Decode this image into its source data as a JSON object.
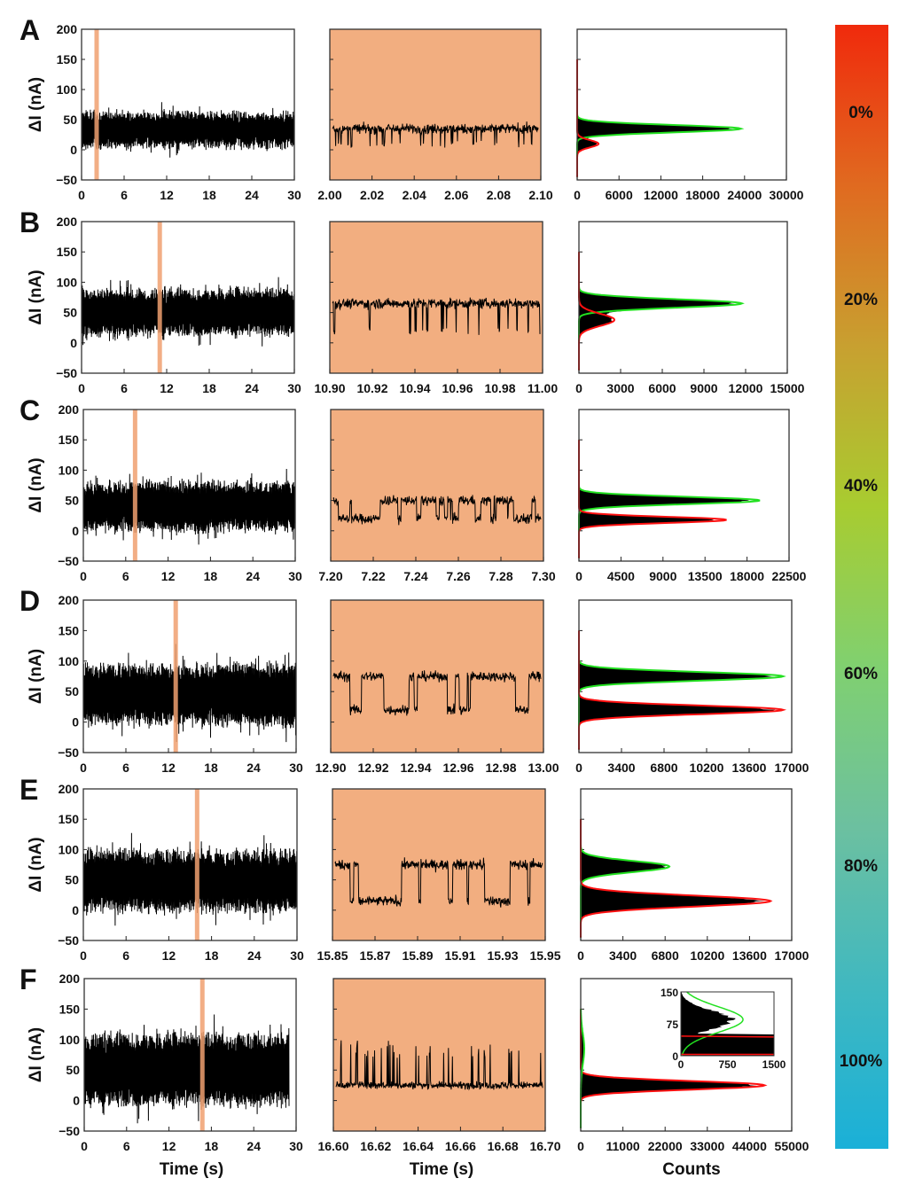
{
  "figure": {
    "ylabel": "ΔI (nA)",
    "xlabel_trace": "Time (s)",
    "xlabel_zoom": "Time (s)",
    "xlabel_hist": "Counts",
    "colorbar": {
      "labels": [
        "0%",
        "20%",
        "40%",
        "60%",
        "80%",
        "100%"
      ],
      "colors": [
        "#f02a0c",
        "#e06a20",
        "#c8a030",
        "#a8cc30",
        "#80d070",
        "#6cc0a0",
        "#40b8c0",
        "#1ab0d8"
      ]
    },
    "highlight_color": "#f0a070",
    "zoom_bg_color": "#f2ae80"
  },
  "chart_data": [
    {
      "panel": "A",
      "type": "line",
      "ylim": [
        -50,
        200
      ],
      "yticks": [
        "200",
        "150",
        "100",
        "50",
        "0",
        "−50"
      ],
      "trace": {
        "xlim": [
          0,
          30
        ],
        "xticks": [
          "0",
          "6",
          "12",
          "18",
          "24",
          "30"
        ],
        "highlight": [
          2.0,
          2.1
        ],
        "mean": 33,
        "spread": 28,
        "end": 30
      },
      "zoom": {
        "xlim": [
          2.0,
          2.1
        ],
        "xticks": [
          "2.00",
          "2.02",
          "2.04",
          "2.06",
          "2.08",
          "2.10"
        ],
        "levels": [
          35,
          10
        ],
        "occupancy_low": 0.08,
        "dwell": "short"
      },
      "hist": {
        "xlim": [
          0,
          30000
        ],
        "xticks": [
          "0",
          "6000",
          "12000",
          "18000",
          "24000",
          "30000"
        ],
        "peaks": [
          {
            "center": 35,
            "count": 23000,
            "width": 6,
            "fit": "green"
          },
          {
            "center": 10,
            "count": 3000,
            "width": 6,
            "fit": "red"
          }
        ]
      }
    },
    {
      "panel": "B",
      "type": "line",
      "ylim": [
        -50,
        200
      ],
      "yticks": [
        "200",
        "150",
        "100",
        "50",
        "0",
        "−50"
      ],
      "trace": {
        "xlim": [
          0,
          30
        ],
        "xticks": [
          "0",
          "6",
          "12",
          "18",
          "24",
          "30"
        ],
        "highlight": [
          10.9,
          11.0
        ],
        "mean": 50,
        "spread": 38,
        "end": 30
      },
      "zoom": {
        "xlim": [
          10.9,
          11.0
        ],
        "xticks": [
          "10.90",
          "10.92",
          "10.94",
          "10.96",
          "10.98",
          "11.00"
        ],
        "levels": [
          65,
          20
        ],
        "occupancy_low": 0.18,
        "dwell": "short"
      },
      "hist": {
        "xlim": [
          0,
          15000
        ],
        "xticks": [
          "0",
          "3000",
          "6000",
          "9000",
          "12000",
          "15000"
        ],
        "peaks": [
          {
            "center": 65,
            "count": 11500,
            "width": 7,
            "fit": "green"
          },
          {
            "center": 38,
            "count": 2500,
            "width": 10,
            "fit": "red"
          }
        ]
      }
    },
    {
      "panel": "C",
      "type": "line",
      "ylim": [
        -50,
        200
      ],
      "yticks": [
        "200",
        "150",
        "100",
        "50",
        "0",
        "−50"
      ],
      "trace": {
        "xlim": [
          0,
          30
        ],
        "xticks": [
          "0",
          "6",
          "12",
          "18",
          "24",
          "30"
        ],
        "highlight": [
          7.2,
          7.3
        ],
        "mean": 40,
        "spread": 40,
        "end": 30
      },
      "zoom": {
        "xlim": [
          7.2,
          7.3
        ],
        "xticks": [
          "7.20",
          "7.22",
          "7.24",
          "7.26",
          "7.28",
          "7.30"
        ],
        "levels": [
          50,
          20
        ],
        "occupancy_low": 0.4,
        "dwell": "medium"
      },
      "hist": {
        "xlim": [
          0,
          22500
        ],
        "xticks": [
          "0",
          "4500",
          "9000",
          "13500",
          "18000",
          "22500"
        ],
        "peaks": [
          {
            "center": 50,
            "count": 19000,
            "width": 6,
            "fit": "green"
          },
          {
            "center": 18,
            "count": 15500,
            "width": 5,
            "fit": "red"
          }
        ]
      }
    },
    {
      "panel": "D",
      "type": "line",
      "ylim": [
        -50,
        200
      ],
      "yticks": [
        "200",
        "150",
        "100",
        "50",
        "0",
        "−50"
      ],
      "trace": {
        "xlim": [
          0,
          30
        ],
        "xticks": [
          "0",
          "6",
          "12",
          "18",
          "24",
          "30"
        ],
        "highlight": [
          12.9,
          13.0
        ],
        "mean": 45,
        "spread": 50,
        "end": 30
      },
      "zoom": {
        "xlim": [
          12.9,
          13.0
        ],
        "xticks": [
          "12.90",
          "12.92",
          "12.94",
          "12.96",
          "12.98",
          "13.00"
        ],
        "levels": [
          75,
          20
        ],
        "occupancy_low": 0.5,
        "dwell": "long"
      },
      "hist": {
        "xlim": [
          0,
          17000
        ],
        "xticks": [
          "0",
          "3400",
          "6800",
          "10200",
          "13600",
          "17000"
        ],
        "peaks": [
          {
            "center": 75,
            "count": 16000,
            "width": 7,
            "fit": "green"
          },
          {
            "center": 20,
            "count": 16000,
            "width": 7,
            "fit": "red"
          }
        ]
      }
    },
    {
      "panel": "E",
      "type": "line",
      "ylim": [
        -50,
        200
      ],
      "yticks": [
        "200",
        "150",
        "100",
        "50",
        "0",
        "−50"
      ],
      "trace": {
        "xlim": [
          0,
          30
        ],
        "xticks": [
          "0",
          "6",
          "12",
          "18",
          "24",
          "30"
        ],
        "highlight": [
          15.85,
          15.95
        ],
        "mean": 48,
        "spread": 52,
        "end": 30
      },
      "zoom": {
        "xlim": [
          15.85,
          15.95
        ],
        "xticks": [
          "15.85",
          "15.87",
          "15.89",
          "15.91",
          "15.93",
          "15.95"
        ],
        "levels": [
          75,
          15
        ],
        "occupancy_low": 0.6,
        "dwell": "long"
      },
      "hist": {
        "xlim": [
          0,
          17000
        ],
        "xticks": [
          "0",
          "3400",
          "6800",
          "10200",
          "13600",
          "17000"
        ],
        "peaks": [
          {
            "center": 72,
            "count": 7000,
            "width": 9,
            "fit": "green"
          },
          {
            "center": 15,
            "count": 15000,
            "width": 9,
            "fit": "red"
          }
        ]
      }
    },
    {
      "panel": "F",
      "type": "line",
      "ylim": [
        -50,
        200
      ],
      "yticks": [
        "200",
        "150",
        "100",
        "50",
        "0",
        "−50"
      ],
      "trace": {
        "xlim": [
          0,
          30
        ],
        "xticks": [
          "0",
          "6",
          "12",
          "18",
          "24",
          "30"
        ],
        "highlight": [
          16.6,
          16.7
        ],
        "mean": 50,
        "spread": 60,
        "end": 29
      },
      "zoom": {
        "xlim": [
          16.6,
          16.7
        ],
        "xticks": [
          "16.60",
          "16.62",
          "16.64",
          "16.66",
          "16.68",
          "16.70"
        ],
        "levels": [
          25,
          100
        ],
        "occupancy_low": 0.06,
        "dwell": "spikes"
      },
      "hist": {
        "xlim": [
          0,
          55000
        ],
        "xticks": [
          "0",
          "11000",
          "22000",
          "33000",
          "44000",
          "55000"
        ],
        "peaks": [
          {
            "center": 25,
            "count": 47000,
            "width": 7,
            "fit": "red"
          },
          {
            "center": 85,
            "count": 900,
            "width": 25,
            "fit": "green"
          }
        ],
        "inset": {
          "xlim": [
            0,
            1500
          ],
          "ylim": [
            0,
            150
          ],
          "xticks": [
            "0",
            "750",
            "1500"
          ],
          "yticks": [
            "150",
            "75",
            "0"
          ]
        }
      }
    }
  ]
}
